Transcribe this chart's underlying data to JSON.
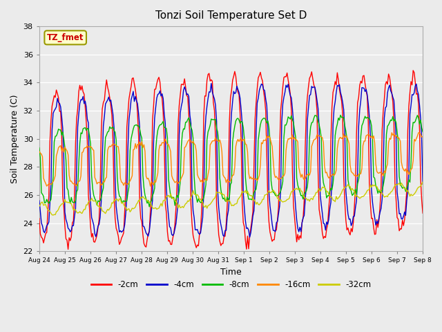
{
  "title": "Tonzi Soil Temperature Set D",
  "xlabel": "Time",
  "ylabel": "Soil Temperature (C)",
  "ylim": [
    22,
    38
  ],
  "yticks": [
    22,
    24,
    26,
    28,
    30,
    32,
    34,
    36,
    38
  ],
  "series_labels": [
    "-2cm",
    "-4cm",
    "-8cm",
    "-16cm",
    "-32cm"
  ],
  "series_colors": [
    "#ff0000",
    "#0000cc",
    "#00bb00",
    "#ff8800",
    "#cccc00"
  ],
  "legend_label": "TZ_fmet",
  "legend_bg": "#ffffcc",
  "legend_border": "#aaaa00",
  "background_color": "#ebebeb",
  "xtick_labels": [
    "Aug 24",
    "Aug 25",
    "Aug 26",
    "Aug 27",
    "Aug 28",
    "Aug 29",
    "Aug 30",
    "Aug 31",
    "Sep 1",
    "Sep 2",
    "Sep 3",
    "Sep 4",
    "Sep 5",
    "Sep 6",
    "Sep 7",
    "Sep 8"
  ]
}
